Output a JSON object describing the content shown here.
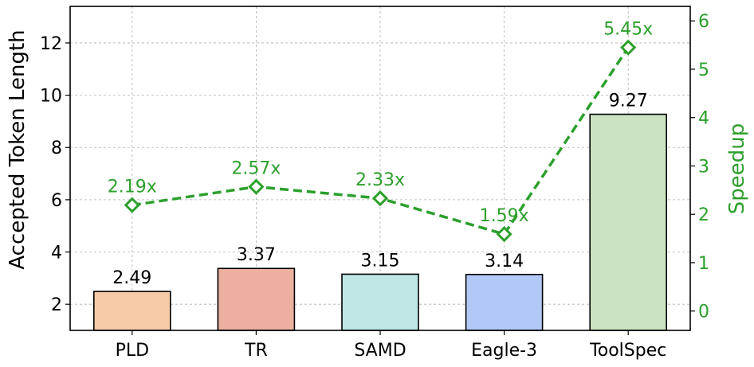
{
  "chart_data": {
    "type": "bar",
    "categories": [
      "PLD",
      "TR",
      "SAMD",
      "Eagle-3",
      "ToolSpec"
    ],
    "series": [
      {
        "type": "bar",
        "axis": "left",
        "values": [
          2.49,
          3.37,
          3.15,
          3.14,
          9.27
        ],
        "value_labels": [
          "2.49",
          "3.37",
          "3.15",
          "3.14",
          "9.27"
        ],
        "colors": [
          "#f7cba8",
          "#ecb0a0",
          "#c0e6e6",
          "#b2c9f7",
          "#cce3c1"
        ]
      },
      {
        "type": "line",
        "axis": "right",
        "values": [
          2.19,
          2.57,
          2.33,
          1.59,
          5.45
        ],
        "value_labels": [
          "2.19x",
          "2.57x",
          "2.33x",
          "1.59x",
          "5.45x"
        ],
        "color": "#2ca02c",
        "line_style": "dashed",
        "marker": "diamond-open"
      }
    ],
    "ylabel": "Accepted Token Length",
    "ylabel_right": "Speedup",
    "ylim": [
      1.0,
      13.4
    ],
    "ylim_right": [
      -0.4,
      6.3
    ],
    "yticks": [
      2,
      4,
      6,
      8,
      10,
      12
    ],
    "yticks_right": [
      0,
      1,
      2,
      3,
      4,
      5,
      6
    ],
    "grid": true
  }
}
